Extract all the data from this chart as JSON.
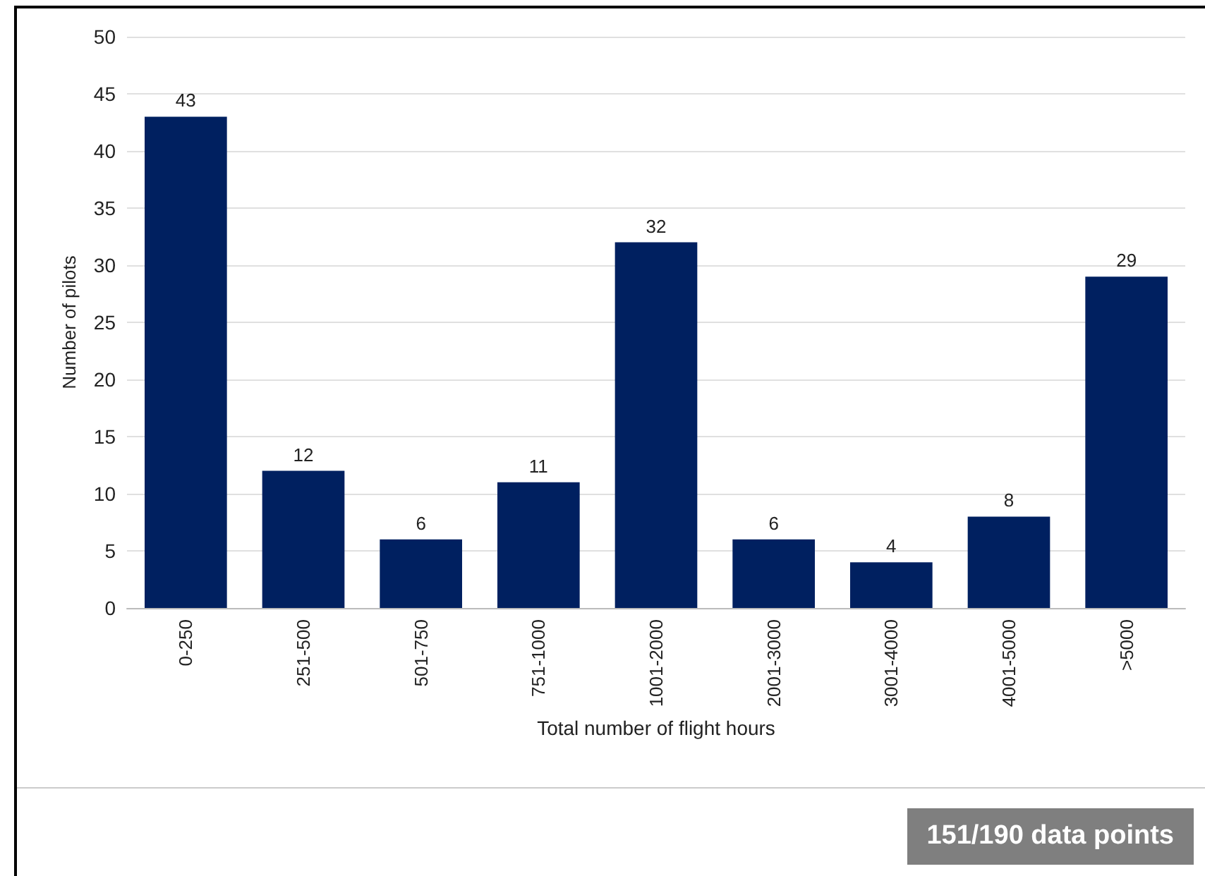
{
  "chart_data": {
    "type": "bar",
    "xlabel": "Total number of flight hours",
    "ylabel": "Number of pilots",
    "categories": [
      "0-250",
      "251-500",
      "501-750",
      "751-1000",
      "1001-2000",
      "2001-3000",
      "3001-4000",
      "4001-5000",
      ">5000"
    ],
    "values": [
      43,
      12,
      6,
      11,
      32,
      6,
      4,
      8,
      29
    ],
    "color": "#002060",
    "ylim": [
      0,
      50
    ],
    "yticks": [
      0,
      5,
      10,
      15,
      20,
      25,
      30,
      35,
      40,
      45,
      50
    ],
    "grid": "y",
    "data_labels": true,
    "annotations": [
      "151/190 data points"
    ]
  }
}
